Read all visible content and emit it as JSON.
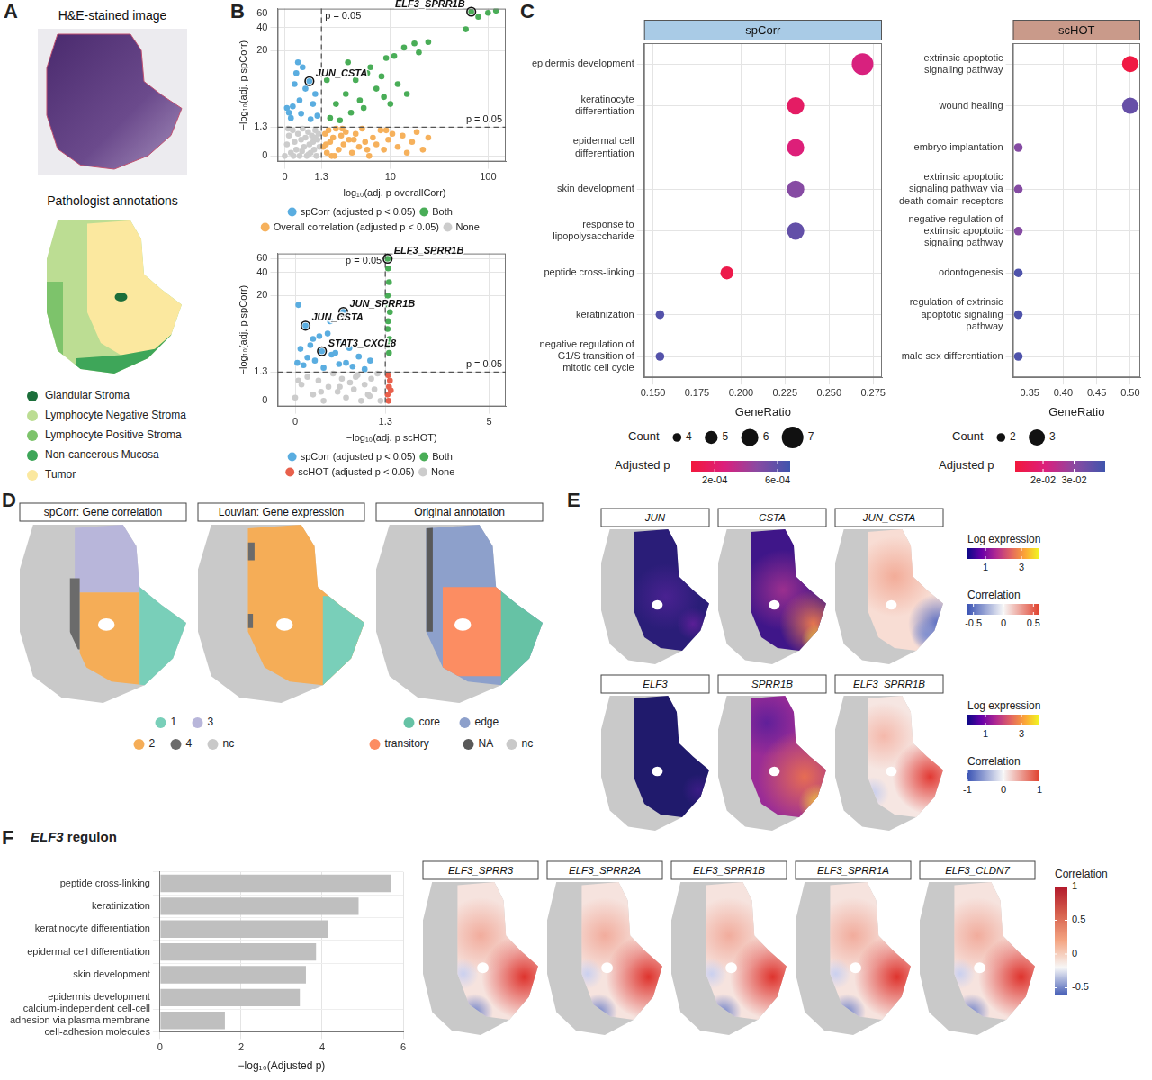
{
  "panel_letters": [
    "A",
    "B",
    "C",
    "D",
    "E",
    "F"
  ],
  "panel_A": {
    "title_image": "H&E-stained image",
    "title_annotations": "Pathologist annotations",
    "legend": [
      {
        "label": "Glandular Stroma",
        "color": "#1b6e3a"
      },
      {
        "label": "Lymphocyte Negative Stroma",
        "color": "#bcdd93"
      },
      {
        "label": "Lymphocyte Positive Stroma",
        "color": "#7dc36b"
      },
      {
        "label": "Non-cancerous Mucosa",
        "color": "#3ea659"
      },
      {
        "label": "Tumor",
        "color": "#fbe89f"
      }
    ]
  },
  "chart_data": [
    {
      "type": "scatter",
      "x_label": "−log₁₀(adj. p overallCorr)",
      "y_label": "−log₁₀(adj. p spCorr)",
      "xlim": [
        -0.15,
        150
      ],
      "xticks": [
        0,
        1.3,
        10,
        100
      ],
      "ylim": [
        -0.15,
        70
      ],
      "yticks": [
        0,
        1.3,
        20,
        40,
        60
      ],
      "grid": true,
      "legend": "bottom",
      "series": [
        {
          "name": "spCorr (adjusted p < 0.05)",
          "color": "#5aade0",
          "x": [
            0.05,
            0.1,
            0.15,
            0.2,
            0.25,
            0.3,
            0.4,
            0.5,
            0.6,
            0.75,
            0.8,
            0.9,
            1.0,
            1.1,
            0.35,
            0.45
          ],
          "values": [
            3.0,
            2.5,
            2.0,
            3.2,
            7.0,
            10.0,
            4.0,
            12.0,
            6.0,
            7.7,
            1.9,
            3.5,
            5.0,
            2.2,
            14.0,
            2.4
          ]
        },
        {
          "name": "Both",
          "color": "#49ad57",
          "x": [
            1.6,
            1.8,
            2.2,
            2.5,
            3.0,
            3.2,
            3.5,
            4.0,
            4.5,
            5.0,
            5.5,
            6.0,
            7.0,
            8.0,
            8.5,
            9.0,
            10,
            11,
            12,
            14,
            15,
            18,
            20,
            25,
            60,
            68,
            80,
            100,
            120
          ],
          "values": [
            8.0,
            2.0,
            3.5,
            1.8,
            5.0,
            14,
            2.5,
            8.0,
            4.0,
            3.0,
            10,
            12,
            6.0,
            9.0,
            4.5,
            16,
            3.5,
            17,
            7.0,
            22,
            5.0,
            25,
            19,
            26,
            38,
            64,
            55,
            62,
            66
          ]
        },
        {
          "name": "Overall correlation (adjusted p < 0.05)",
          "color": "#f6b15c",
          "x": [
            1.4,
            1.5,
            1.6,
            1.7,
            1.8,
            1.9,
            2.0,
            2.2,
            2.4,
            2.6,
            2.8,
            3.0,
            3.3,
            3.6,
            4.0,
            4.4,
            4.8,
            5.2,
            5.8,
            6.4,
            7.0,
            7.8,
            8.5,
            9.5,
            10.5,
            12,
            13.5,
            15,
            17,
            19,
            22,
            25,
            1.55,
            2.1,
            2.7,
            3.8,
            5.5,
            9
          ],
          "values": [
            0.3,
            0.9,
            0.1,
            1.1,
            0.5,
            0.0,
            0.7,
            1.2,
            0.2,
            0.8,
            0.4,
            1.0,
            0.6,
            0.1,
            0.9,
            0.3,
            1.2,
            0.5,
            0.0,
            0.7,
            0.4,
            1.1,
            0.2,
            0.6,
            0.9,
            0.3,
            0.8,
            0.1,
            0.5,
            1.0,
            0.2,
            0.7,
            0.4,
            0.0,
            1.2,
            0.6,
            0.2,
            1.1
          ]
        },
        {
          "name": "None",
          "color": "#cccccc",
          "x": [
            0.0,
            0.05,
            0.1,
            0.15,
            0.2,
            0.25,
            0.3,
            0.35,
            0.4,
            0.45,
            0.5,
            0.55,
            0.6,
            0.65,
            0.7,
            0.75,
            0.8,
            0.85,
            0.9,
            0.95,
            1.0,
            1.05,
            1.1,
            1.15,
            1.2,
            0.08,
            0.22,
            0.48,
            0.72,
            0.98
          ],
          "values": [
            0.0,
            0.4,
            0.8,
            0.1,
            1.1,
            0.5,
            0.2,
            0.9,
            0.0,
            0.6,
            1.2,
            0.3,
            0.7,
            0.0,
            1.0,
            0.4,
            0.1,
            0.8,
            0.5,
            0.2,
            1.1,
            0.0,
            0.6,
            0.9,
            0.3,
            1.2,
            0.0,
            0.15,
            0.05,
            0.7
          ]
        }
      ],
      "ref_lines": [
        {
          "axis": "x",
          "value": 1.3,
          "label": "p = 0.05"
        },
        {
          "axis": "y",
          "value": 1.3,
          "label": "p = 0.05"
        }
      ],
      "highlights": [
        {
          "label": "ELF3_SPRR1B",
          "x": 68,
          "y": 64
        },
        {
          "label": "JUN_CSTA",
          "x": 0.75,
          "y": 7.7
        }
      ]
    },
    {
      "type": "scatter",
      "x_label": "−log₁₀(adj. p scHOT)",
      "y_label": "−log₁₀(adj. p spCorr)",
      "xlim": [
        -0.15,
        6
      ],
      "xticks": [
        0,
        1.3,
        5
      ],
      "ylim": [
        -0.15,
        70
      ],
      "yticks": [
        0,
        1.3,
        20,
        40,
        60
      ],
      "grid": true,
      "legend": "bottom",
      "series": [
        {
          "name": "spCorr (adjusted p < 0.05)",
          "color": "#5aade0",
          "x": [
            0.02,
            0.05,
            0.08,
            0.1,
            0.12,
            0.15,
            0.2,
            0.25,
            0.28,
            0.3,
            0.35,
            0.4,
            0.45,
            0.5,
            0.55,
            0.56,
            0.6,
            0.7,
            0.8,
            0.9,
            1.0,
            0.18,
            0.38,
            0.65,
            0.03
          ],
          "values": [
            2.0,
            3.5,
            1.8,
            7.8,
            2.5,
            4.0,
            2.2,
            5.5,
            3.2,
            1.6,
            6.0,
            2.8,
            3.0,
            1.9,
            4.5,
            12.1,
            2.0,
            1.7,
            2.6,
            1.5,
            2.2,
            5.0,
            9.0,
            3.6,
            15
          ]
        },
        {
          "name": "Both",
          "color": "#49ad57",
          "x": [
            1.35,
            1.36,
            1.38,
            1.35,
            1.37,
            1.4,
            1.36,
            1.35,
            1.39,
            1.36,
            1.38
          ],
          "values": [
            60,
            45,
            30,
            20,
            15,
            12,
            9,
            7,
            5,
            4,
            3
          ]
        },
        {
          "name": "scHOT (adjusted p < 0.05)",
          "color": "#e8604c",
          "x": [
            1.35,
            1.38,
            1.4,
            1.36,
            1.42,
            1.37
          ],
          "values": [
            0.2,
            0.5,
            0.8,
            1.1,
            0.35,
            0.0
          ]
        },
        {
          "name": "None",
          "color": "#cccccc",
          "x": [
            0.0,
            0.06,
            0.12,
            0.18,
            0.24,
            0.3,
            0.36,
            0.42,
            0.48,
            0.54,
            0.6,
            0.66,
            0.72,
            0.78,
            0.84,
            0.9,
            0.96,
            1.02,
            1.08,
            1.14,
            1.2,
            0.03,
            0.27,
            0.51,
            0.75,
            0.99
          ],
          "values": [
            0.1,
            0.6,
            1.0,
            0.2,
            0.8,
            0.0,
            0.5,
            1.2,
            0.3,
            0.9,
            0.1,
            0.7,
            0.4,
            1.1,
            0.0,
            0.6,
            0.2,
            0.9,
            0.4,
            1.2,
            0.0,
            0.8,
            0.3,
            0.5,
            1.0,
            0.15
          ]
        }
      ],
      "ref_lines": [
        {
          "axis": "x",
          "value": 1.3,
          "label": "p = 0.05"
        },
        {
          "axis": "y",
          "value": 1.3,
          "label": "p = 0.05"
        }
      ],
      "highlights": [
        {
          "label": "ELF3_SPRR1B",
          "x": 1.35,
          "y": 60
        },
        {
          "label": "JUN_SPRR1B",
          "x": 0.56,
          "y": 12.1
        },
        {
          "label": "JUN_CSTA",
          "x": 0.1,
          "y": 7.8
        },
        {
          "label": "STAT3_CXCL8",
          "x": 0.28,
          "y": 3.2
        }
      ]
    },
    {
      "type": "dot",
      "title": "spCorr",
      "x_label": "GeneRatio",
      "categories": [
        "epidermis development",
        "keratinocyte differentiation",
        "epidermal cell differentiation",
        "skin development",
        "response to lipopolysaccharide",
        "peptide cross-linking",
        "keratinization",
        "negative regulation of G1/S transition of mitotic cell cycle"
      ],
      "values": [
        0.269,
        0.231,
        0.231,
        0.231,
        0.231,
        0.192,
        0.154,
        0.154
      ],
      "count": [
        7,
        6,
        6,
        6,
        6,
        5,
        4,
        4
      ],
      "adjusted_p": [
        0.00027,
        0.00018,
        0.00025,
        0.00048,
        0.00058,
        0.0001,
        0.00062,
        0.00062
      ],
      "xlim": [
        0.145,
        0.28
      ],
      "xticks": [
        {
          "value": 0.15,
          "label": "0.150"
        },
        0.175,
        {
          "value": 0.2,
          "label": "0.200"
        },
        0.225,
        {
          "value": 0.25,
          "label": "0.250"
        },
        0.275
      ],
      "grid": true,
      "size_legend": {
        "title": "Count",
        "values": [
          4,
          5,
          6,
          7
        ]
      },
      "color_bar": {
        "title": "Adjusted p",
        "range": [
          5e-05,
          0.00068
        ],
        "ticks": [
          {
            "value": 0.0002,
            "label": "2e-04"
          },
          {
            "value": 0.0006,
            "label": "6e-04"
          }
        ],
        "colors": [
          "#f2183c",
          "#dc1f7c",
          "#8a4aa2",
          "#3f55ad"
        ]
      }
    },
    {
      "type": "dot",
      "title": "scHOT",
      "x_label": "GeneRatio",
      "categories": [
        "extrinsic apoptotic signaling pathway",
        "wound healing",
        "embryo implantation",
        "extrinsic apoptotic signaling pathway via death domain receptors",
        "negative regulation of extrinsic apoptotic signaling pathway",
        "odontogenesis",
        "regulation of extrinsic apoptotic signaling pathway",
        "male sex differentiation"
      ],
      "values": [
        0.5,
        0.5,
        0.333,
        0.333,
        0.333,
        0.333,
        0.333,
        0.333
      ],
      "count": [
        3,
        3,
        2,
        2,
        2,
        2,
        2,
        2
      ],
      "adjusted_p": [
        0.012,
        0.035,
        0.031,
        0.031,
        0.031,
        0.038,
        0.038,
        0.038
      ],
      "xlim": [
        0.325,
        0.515
      ],
      "xticks": [
        0.35,
        {
          "value": 0.4,
          "label": "0.40"
        },
        0.45,
        {
          "value": 0.5,
          "label": "0.50"
        }
      ],
      "grid": true,
      "size_legend": {
        "title": "Count",
        "values": [
          2,
          3
        ]
      },
      "color_bar": {
        "title": "Adjusted p",
        "range": [
          0.011,
          0.04
        ],
        "ticks": [
          {
            "value": 0.02,
            "label": "2e-02"
          },
          {
            "value": 0.03,
            "label": "3e-02"
          }
        ],
        "colors": [
          "#f2183c",
          "#dc1f7c",
          "#8a4aa2",
          "#3f55ad"
        ]
      }
    },
    {
      "type": "bar",
      "orientation": "horizontal",
      "title": "ELF3 regulon",
      "x_label": "−log₁₀(Adjusted p)",
      "categories": [
        "peptide cross-linking",
        "keratinization",
        "keratinocyte differentiation",
        "epidermal cell differentiation",
        "skin development",
        "epidermis development",
        "calcium-independent cell-cell adhesion via plasma membrane cell-adhesion molecules"
      ],
      "values": [
        5.7,
        4.9,
        4.15,
        3.85,
        3.6,
        3.45,
        1.6
      ],
      "xlim": [
        0,
        6
      ],
      "xticks": [
        0,
        2,
        4,
        6
      ],
      "color": "#bfbfbf",
      "grid": true
    }
  ],
  "panel_D": {
    "maps": [
      {
        "title": "spCorr: Gene correlation"
      },
      {
        "title": "Louvian: Gene expression"
      },
      {
        "title": "Original annotation"
      }
    ],
    "legends": [
      {
        "items": [
          {
            "label": "1",
            "color": "#79cfb9"
          },
          {
            "label": "3",
            "color": "#b8b6da"
          },
          {
            "label": "2",
            "color": "#f5ad57"
          },
          {
            "label": "4",
            "color": "#6b6b6b"
          },
          {
            "label": "nc",
            "color": "#c9c9c9"
          }
        ]
      },
      {
        "items": [
          {
            "label": "core",
            "color": "#66c2a5"
          },
          {
            "label": "edge",
            "color": "#8da0cb"
          },
          {
            "label": "transitory",
            "color": "#fc8d62"
          },
          {
            "label": "NA",
            "color": "#595959"
          },
          {
            "label": "nc",
            "color": "#c9c9c9"
          }
        ]
      }
    ]
  },
  "panel_E": {
    "maps": [
      {
        "title": "JUN"
      },
      {
        "title": "CSTA"
      },
      {
        "title": "JUN_CSTA"
      },
      {
        "title": "ELF3"
      },
      {
        "title": "SPRR1B"
      },
      {
        "title": "ELF3_SPRR1B"
      },
      {
        "title": "ELF3_SPRR3"
      },
      {
        "title": "ELF3_SPRR2A"
      },
      {
        "title": "ELF3_SPRR1B"
      },
      {
        "title": "ELF3_SPRR1A"
      },
      {
        "title": "ELF3_CLDN7"
      }
    ],
    "color_bars": [
      {
        "title": "Log expression",
        "range": [
          0,
          4
        ],
        "ticks": [
          1,
          3
        ],
        "colors": [
          "#0d0887",
          "#6a00a8",
          "#b12a90",
          "#e16462",
          "#fca636",
          "#f0f921"
        ]
      },
      {
        "title": "Correlation",
        "range": [
          -0.6,
          0.6
        ],
        "ticks": [
          -0.5,
          0,
          0.5
        ],
        "colors": [
          "#3b54b4",
          "#f7f7f7",
          "#e0402c"
        ]
      },
      {
        "title": "Log expression",
        "range": [
          0,
          4
        ],
        "ticks": [
          1,
          3
        ],
        "colors": [
          "#0d0887",
          "#6a00a8",
          "#b12a90",
          "#e16462",
          "#fca636",
          "#f0f921"
        ]
      },
      {
        "title": "Correlation",
        "range": [
          -1,
          1
        ],
        "ticks": [
          -1,
          0,
          1
        ],
        "colors": [
          "#3b54b4",
          "#f7f7f7",
          "#e0402c"
        ]
      },
      {
        "title": "Correlation",
        "range": [
          -0.6,
          1
        ],
        "ticks": [
          1,
          0.5,
          0,
          -0.5
        ],
        "colors": [
          "#4a62b8",
          "#f7f7f7",
          "#f4a582",
          "#d6604d",
          "#b2182b"
        ]
      }
    ]
  }
}
